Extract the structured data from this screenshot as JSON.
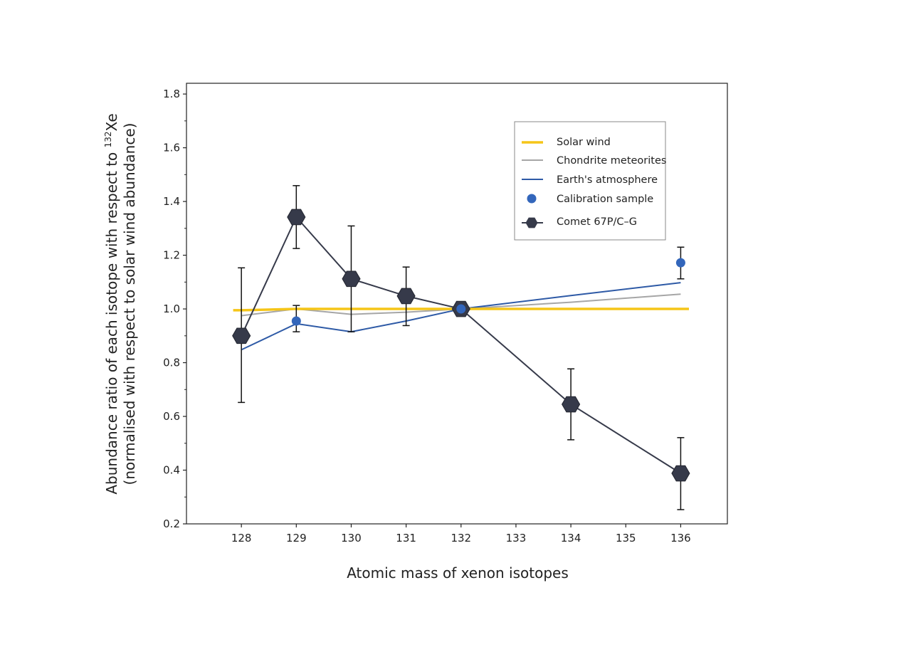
{
  "chart_data": {
    "type": "line",
    "title": "",
    "xlabel": "Atomic mass of xenon isotopes",
    "ylabel_line1_prefix": "Abundance ratio of each isotope with respect to ",
    "ylabel_line1_sup": "132",
    "ylabel_line1_suffix": "Xe",
    "ylabel_line2": "(normalised with respect to solar wind abundance)",
    "categories": [
      "128",
      "129",
      "130",
      "131",
      "132",
      "133",
      "134",
      "135",
      "136"
    ],
    "xlim": [
      127,
      136.85
    ],
    "ylim": [
      0.2,
      1.84
    ],
    "yticks": [
      0.2,
      0.4,
      0.6,
      0.8,
      1.0,
      1.2,
      1.4,
      1.6,
      1.8
    ],
    "ytick_labels": [
      "0.2",
      "0.4",
      "0.6",
      "0.8",
      "1.0",
      "1.2",
      "1.4",
      "1.6",
      "1.8"
    ],
    "yminor_ticks": [
      0.3,
      0.5,
      0.7,
      0.9,
      1.1,
      1.3,
      1.5,
      1.7
    ],
    "grid": false,
    "legend_position": "top-right",
    "series": [
      {
        "name": "Solar wind",
        "kind": "line",
        "color": "#f5c518",
        "x": [
          127.85,
          128,
          129,
          130,
          131,
          132,
          134,
          136,
          136.15
        ],
        "y": [
          0.995,
          0.995,
          1.0,
          1.0,
          1.0,
          1.0,
          1.0,
          1.0,
          1.0
        ]
      },
      {
        "name": "Chondrite meteorites",
        "kind": "line",
        "color": "#a6a6a6",
        "x": [
          128,
          129,
          130,
          131,
          132,
          134,
          136
        ],
        "y": [
          0.975,
          1.0,
          0.98,
          0.988,
          1.0,
          1.025,
          1.055
        ]
      },
      {
        "name": "Earth's atmosphere",
        "kind": "line",
        "color": "#2e5aa6",
        "x": [
          128,
          129,
          130,
          131,
          132,
          134,
          136
        ],
        "y": [
          0.848,
          0.945,
          0.915,
          0.955,
          1.0,
          1.05,
          1.098
        ]
      },
      {
        "name": "Calibration sample",
        "kind": "scatter",
        "color": "#3366bb",
        "x": [
          129,
          132,
          136
        ],
        "y": [
          0.955,
          1.0,
          1.172
        ],
        "err_low": [
          0.04,
          0.0,
          0.06
        ],
        "err_high": [
          0.058,
          0.0,
          0.058
        ]
      },
      {
        "name": "Comet 67P/C–G",
        "kind": "line-marker",
        "color": "#363a4a",
        "x": [
          128,
          129,
          130,
          131,
          132,
          134,
          136
        ],
        "y": [
          0.9,
          1.342,
          1.112,
          1.048,
          1.0,
          0.645,
          0.388
        ],
        "err_low": [
          0.248,
          0.117,
          0.197,
          0.11,
          0.0,
          0.132,
          0.135
        ],
        "err_high": [
          0.253,
          0.117,
          0.197,
          0.108,
          0.0,
          0.132,
          0.133
        ]
      }
    ]
  }
}
